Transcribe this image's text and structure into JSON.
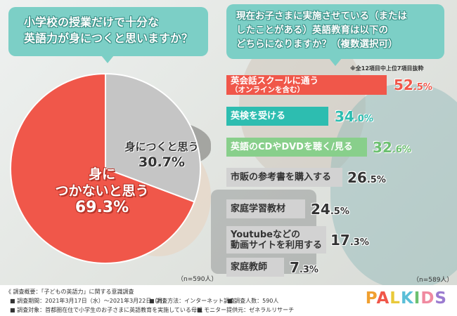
{
  "question_left": {
    "line1": "小学校の授業だけで十分な",
    "line2": "英語力が身につくと思いますか？"
  },
  "question_right": {
    "line1": "現在お子さまに実施させている（または",
    "line2": "したことがある）英語教育は以下の",
    "line3": "どちらになりますか？（複数選択可）"
  },
  "note_right": "※全12項目中上位7項目抜粋",
  "n_left": "（n=590人）",
  "n_right": "（n=589人）",
  "chart_data": [
    {
      "type": "pie",
      "title": "小学校の授業だけで十分な英語力が身につくと思いますか？",
      "slices": [
        {
          "label_line1": "身に",
          "label_line2": "つかないと思う",
          "value": 69.3,
          "pct_text": "69.3%",
          "color": "#f0574a"
        },
        {
          "label_line1": "身につくと思う",
          "label_line2": "",
          "value": 30.7,
          "pct_text": "30.7%",
          "color": "#c5c5c5"
        }
      ]
    },
    {
      "type": "bar",
      "orientation": "horizontal",
      "title": "現在お子さまに実施させている（またはしたことがある）英語教育は以下のどちらになりますか？（複数選択可）",
      "categories": [
        "英会話スクールに通う（オンラインを含む）",
        "英検を受ける",
        "英語のCDやDVDを聴く/見る",
        "市販の参考書を購入する",
        "家庭学習教材",
        "Youtubeなどの動画サイトを利用する",
        "家庭教師"
      ],
      "bars": [
        {
          "label_line1": "英会話スクールに通う",
          "label_line2": "（オンラインを含む）",
          "value": 52.5,
          "pct_text": "52.5%",
          "color": "#f0574a",
          "text_color": "#f0574a",
          "label_color": "#ffffff"
        },
        {
          "label_line1": "英検を受ける",
          "label_line2": "",
          "value": 34.0,
          "pct_text": "34.0%",
          "color": "#2dbdb0",
          "text_color": "#2dbdb0",
          "label_color": "#ffffff"
        },
        {
          "label_line1": "英語のCDやDVDを聴く/見る",
          "label_line2": "",
          "value": 32.6,
          "pct_text": "32.6%",
          "color": "#88cf8b",
          "text_color": "#6cc070",
          "label_color": "#ffffff"
        },
        {
          "label_line1": "市販の参考書を購入する",
          "label_line2": "",
          "value": 26.5,
          "pct_text": "26.5%",
          "color": "#d2d2d2",
          "text_color": "#333333",
          "label_color": "#333333"
        },
        {
          "label_line1": "家庭学習教材",
          "label_line2": "",
          "value": 24.5,
          "pct_text": "24.5%",
          "color": "#d2d2d2",
          "text_color": "#333333",
          "label_color": "#333333"
        },
        {
          "label_line1": "Youtubeなどの",
          "label_line2": "動画サイトを利用する",
          "value": 17.3,
          "pct_text": "17.3%",
          "color": "#d2d2d2",
          "text_color": "#333333",
          "label_color": "#333333"
        },
        {
          "label_line1": "家庭教師",
          "label_line2": "",
          "value": 7.3,
          "pct_text": "7.3%",
          "color": "#d2d2d2",
          "text_color": "#333333",
          "label_color": "#333333"
        }
      ]
    }
  ],
  "footer": {
    "title": "《 調査概要：「子どもの英語力」に関する意識調査",
    "period": "■ 調査期間：2021年3月17日（水）〜2021年3月22日（月）",
    "method": "■ 調査方法：インターネット調査",
    "count": "■ 調査人数：590人",
    "target": "■ 調査対象：首都圏在住で小学生のお子さまに英語教育を実施している母親",
    "provider": "■ モニター提供元：ゼネラルリサーチ"
  },
  "logo": {
    "text": "PALKIDS",
    "colors": [
      "#f0a030",
      "#f0574a",
      "#e9c93a",
      "#5bbfd8",
      "#6cc070",
      "#f08aa0",
      "#9b7bd0"
    ]
  }
}
